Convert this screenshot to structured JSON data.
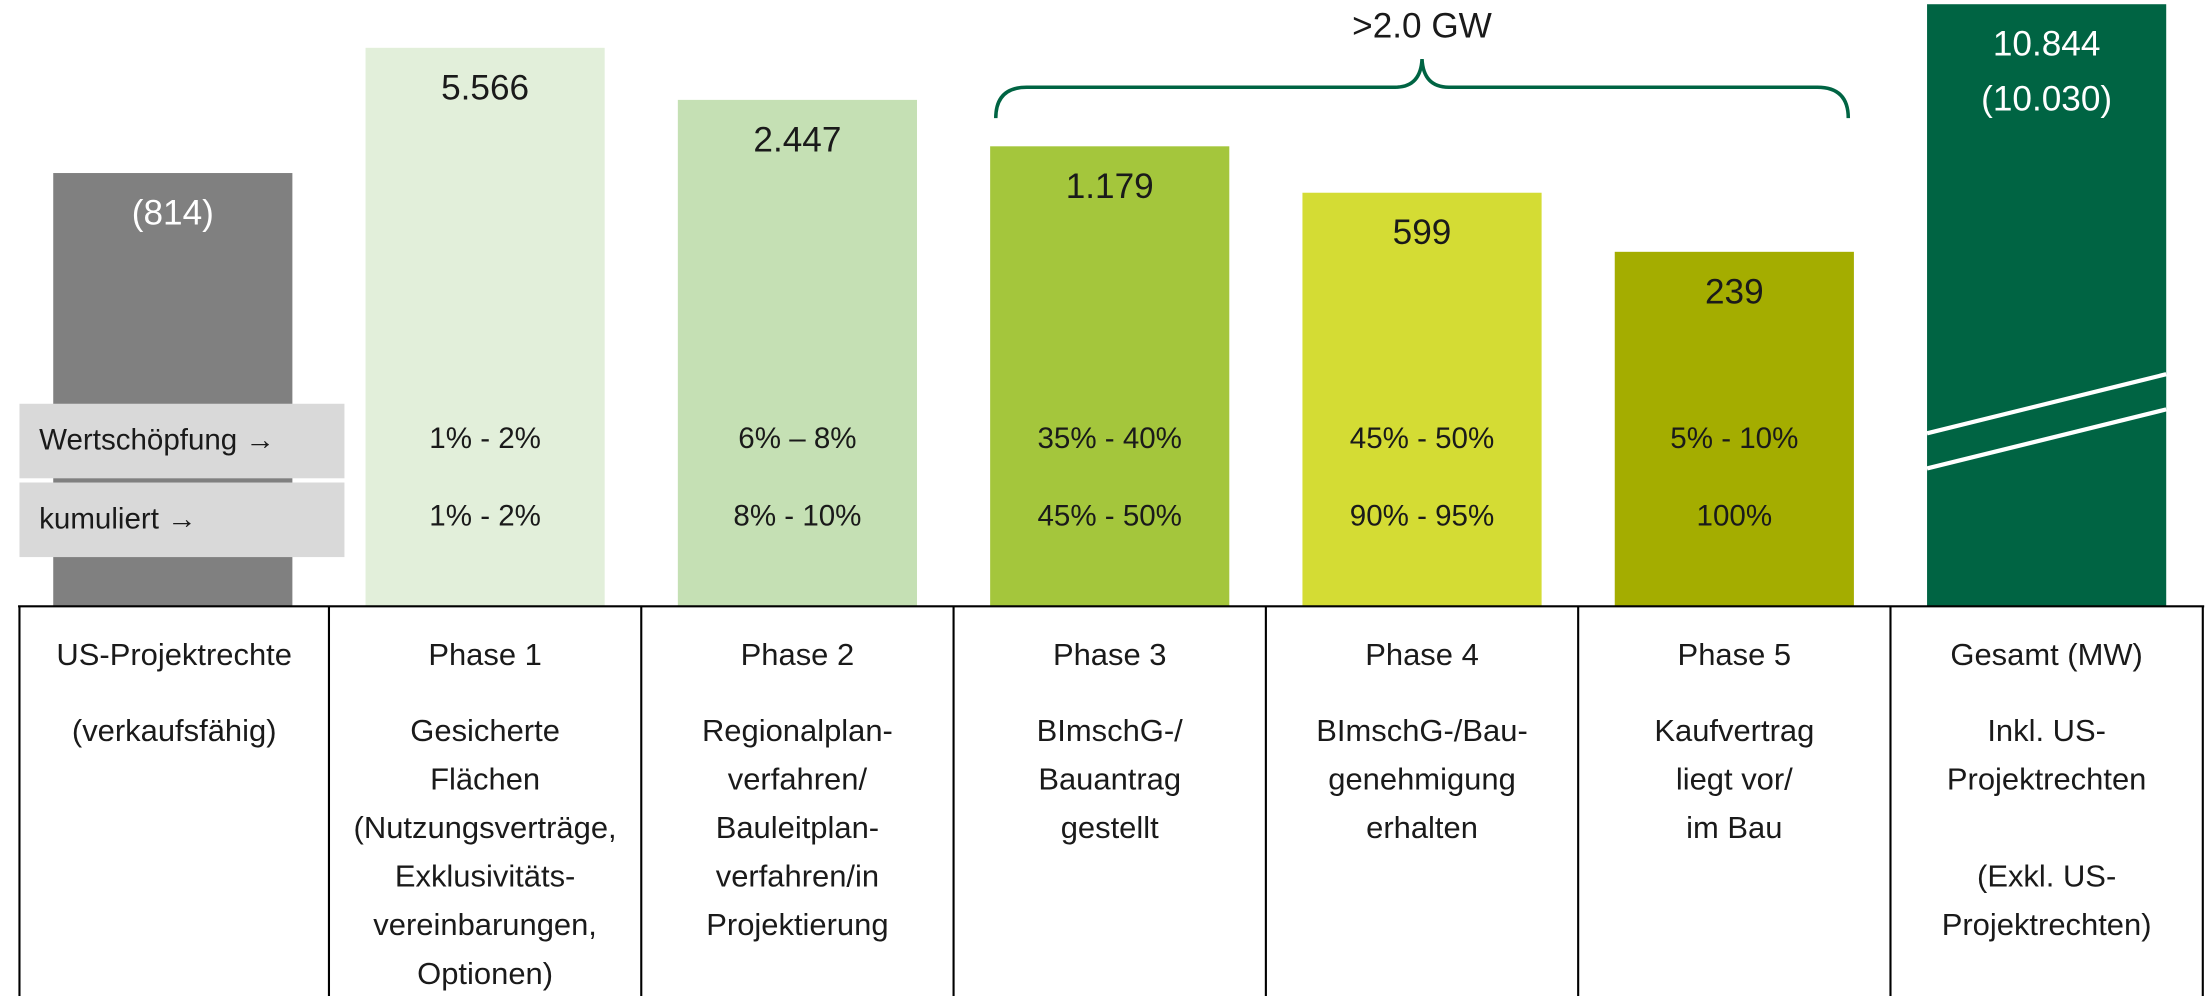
{
  "bars": [
    {
      "value": "(814)",
      "color": "#808080"
    },
    {
      "value": "5.566",
      "color": "#e2efda"
    },
    {
      "value": "2.447",
      "color": "#c5e0b4"
    },
    {
      "value": "1.179",
      "color": "#a4c63c"
    },
    {
      "value": "599",
      "color": "#d4dc34"
    },
    {
      "value": "239",
      "color": "#a4ad00"
    }
  ],
  "total": {
    "value": "10.844",
    "sub": "(10.030)",
    "color": "#006443"
  },
  "brace_label": ">2.0 GW",
  "row_labels": [
    "Wertschöpfung →",
    "kumuliert →"
  ],
  "wertschoepfung": [
    "1% - 2%",
    "6% – 8%",
    "35% - 40%",
    "45% - 50%",
    "5% - 10%"
  ],
  "kumuliert": [
    "1% - 2%",
    "8% - 10%",
    "45% - 50%",
    "90% - 95%",
    "100%"
  ],
  "columns": [
    {
      "title": "US-Projektrechte",
      "paragraphs": [
        [
          "(verkaufsfähig)"
        ]
      ]
    },
    {
      "title": "Phase 1",
      "paragraphs": [
        [
          "Gesicherte",
          "Flächen",
          "(Nutzungsverträge,",
          "Exklusivitäts-",
          "vereinbarungen,",
          "Optionen)"
        ]
      ]
    },
    {
      "title": "Phase 2",
      "paragraphs": [
        [
          "Regionalplan-",
          "verfahren/",
          "Bauleitplan-",
          "verfahren/in",
          "Projektierung"
        ]
      ]
    },
    {
      "title": "Phase 3",
      "paragraphs": [
        [
          "BImschG-/",
          "Bauantrag",
          "gestellt"
        ]
      ]
    },
    {
      "title": "Phase 4",
      "paragraphs": [
        [
          "BImschG-/Bau-",
          "genehmigung",
          "erhalten"
        ]
      ]
    },
    {
      "title": "Phase 5",
      "paragraphs": [
        [
          "Kaufvertrag",
          "liegt vor/",
          "im Bau"
        ]
      ]
    },
    {
      "title": "Gesamt (MW)",
      "paragraphs": [
        [
          "Inkl. US-",
          "Projektrechten"
        ],
        [
          "(Exkl. US-",
          "Projektrechten)"
        ]
      ]
    }
  ]
}
